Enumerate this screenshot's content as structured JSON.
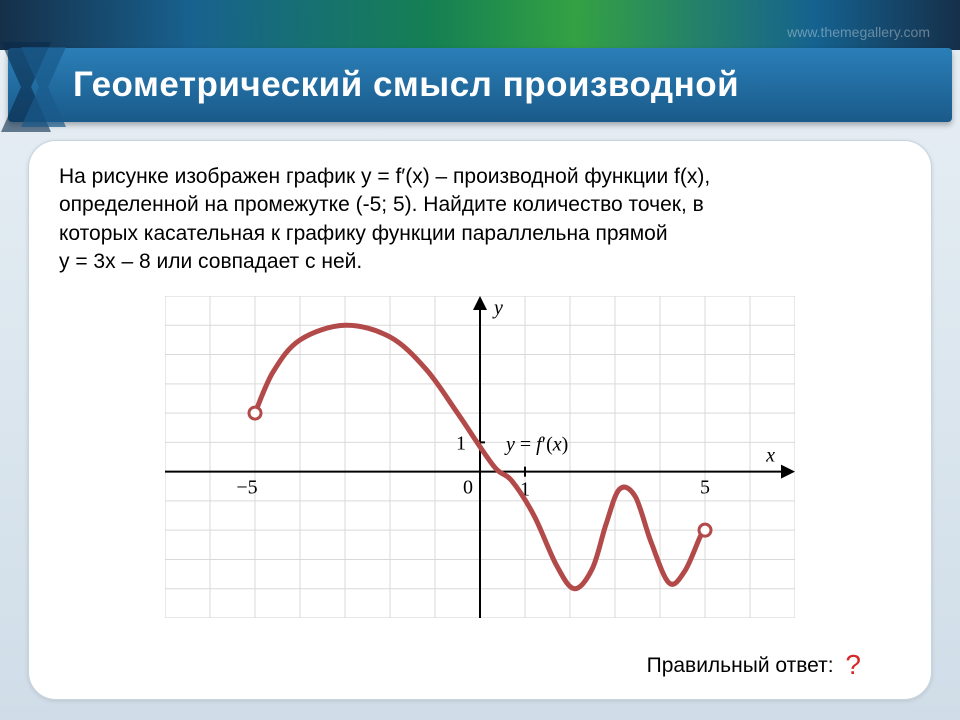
{
  "header": {
    "title": "Геометрический смысл производной",
    "watermark": "www.themegallery.com"
  },
  "problem": {
    "line1": "На рисунке  изображен график  y = f′(x) – производной функции f(x),",
    "line2": "определенной  на промежутке   (-5; 5). Найдите количество точек, в",
    "line3": "которых касательная к графику функции  параллельна прямой",
    "line4": "y = 3x – 8 или совпадает с ней."
  },
  "answer": {
    "label": "Правильный  ответ:",
    "mark": "?",
    "mark_color": "#d62828"
  },
  "chart": {
    "type": "line",
    "background": "#ffffff",
    "grid_color": "#d9d9d9",
    "axis_color": "#000000",
    "curve_color": "#b34a4a",
    "curve_width": 5,
    "endpoint_fill": "#ffffff",
    "endpoint_stroke": "#b34a4a",
    "xlim": [
      -7,
      7
    ],
    "ylim": [
      -5,
      6
    ],
    "x_ticks": [
      -5,
      0,
      1,
      5
    ],
    "x_tick_labels": [
      "−5",
      "0",
      "1",
      "5"
    ],
    "y_ticks": [
      1
    ],
    "y_tick_labels": [
      "1"
    ],
    "axis_label_x": "x",
    "axis_label_y": "y",
    "func_label": "y = f′(x)",
    "label_fontsize": 20,
    "curve_points": [
      [
        -5.0,
        2.0
      ],
      [
        -4.6,
        3.4
      ],
      [
        -4.0,
        4.5
      ],
      [
        -3.0,
        5.0
      ],
      [
        -2.0,
        4.6
      ],
      [
        -1.2,
        3.5
      ],
      [
        -0.5,
        2.0
      ],
      [
        0.3,
        0.2
      ],
      [
        0.7,
        -0.3
      ],
      [
        1.2,
        -1.5
      ],
      [
        1.7,
        -3.2
      ],
      [
        2.1,
        -4.0
      ],
      [
        2.5,
        -3.3
      ],
      [
        2.8,
        -1.8
      ],
      [
        3.1,
        -0.6
      ],
      [
        3.45,
        -0.85
      ],
      [
        3.8,
        -2.4
      ],
      [
        4.2,
        -3.8
      ],
      [
        4.55,
        -3.4
      ],
      [
        4.9,
        -2.2
      ],
      [
        5.0,
        -2.0
      ]
    ],
    "open_points": [
      {
        "x": -5.0,
        "y": 2.0
      },
      {
        "x": 5.0,
        "y": -2.0
      }
    ]
  }
}
